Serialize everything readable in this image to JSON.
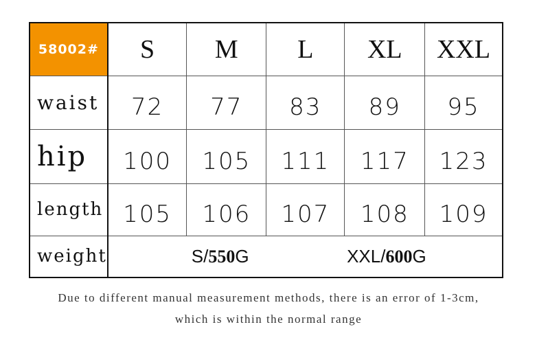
{
  "chart": {
    "code": "58002#",
    "code_color": "#f39200",
    "sizes": [
      "S",
      "M",
      "L",
      "XL",
      "XXL"
    ],
    "rows": [
      {
        "label": "waist",
        "values": [
          "72",
          "77",
          "83",
          "89",
          "95"
        ]
      },
      {
        "label": "hip",
        "values": [
          "100",
          "105",
          "111",
          "117",
          "123"
        ]
      },
      {
        "label": "length",
        "values": [
          "105",
          "106",
          "107",
          "108",
          "109"
        ]
      }
    ],
    "weight": {
      "label": "weight",
      "s_prefix": "S/",
      "s_value": "550",
      "s_unit": "G",
      "xxl_prefix": "XXL/",
      "xxl_value": "600",
      "xxl_unit": "G"
    }
  },
  "note": {
    "line1": "Due to different manual measurement methods, there is an error of 1-3cm,",
    "line2": "which is within the normal range"
  }
}
